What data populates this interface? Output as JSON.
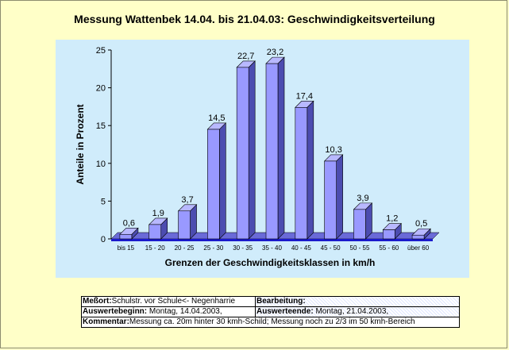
{
  "chart_data": {
    "type": "bar",
    "title": "Messung Wattenbek 14.04. bis 21.04.03: Geschwindigkeitsverteilung",
    "xlabel": "Grenzen der Geschwindigkeitsklassen in km/h",
    "ylabel": "Anteile in Prozent",
    "categories": [
      "bis 15",
      "15 - 20",
      "20 - 25",
      "25 - 30",
      "30 - 35",
      "35 - 40",
      "40 - 45",
      "45 - 50",
      "50 - 55",
      "55 - 60",
      "über 60"
    ],
    "values": [
      0.6,
      1.9,
      3.7,
      14.5,
      22.7,
      23.2,
      17.4,
      10.3,
      3.9,
      1.2,
      0.5
    ],
    "value_labels": [
      "0,6",
      "1,9",
      "3,7",
      "14,5",
      "22,7",
      "23,2",
      "17,4",
      "10,3",
      "3,9",
      "1,2",
      "0,5"
    ],
    "ylim": [
      0,
      25
    ],
    "yticks": [
      0,
      5,
      10,
      15,
      20,
      25
    ],
    "grid": false,
    "legend": "none",
    "bar_3d": true,
    "colors": {
      "bar_front": "#9999ff",
      "bar_side": "#4c4cb0",
      "bar_top": "#b8b8ff",
      "plot_background": "#d0ecfb",
      "floor": "#1a1acc",
      "page_background": "#ffffc8"
    }
  },
  "info": {
    "messort_label": "Meßort:",
    "messort_value": "Schulstr. vor Schule<- Negenharrie",
    "bearbeitung_label": "Bearbeitung:",
    "auswertebeginn_label": "Auswertebeginn:",
    "auswertebeginn_value": " Montag, 14.04.2003,",
    "auswerteende_label": "Auswerteende:",
    "auswerteende_value": " Montag, 21.04.2003,",
    "kommentar_label": "Kommentar:",
    "kommentar_value": "Messung ca. 20m hinter 30 kmh-Schild; Messung noch zu 2/3 im 50 kmh-Bereich"
  }
}
